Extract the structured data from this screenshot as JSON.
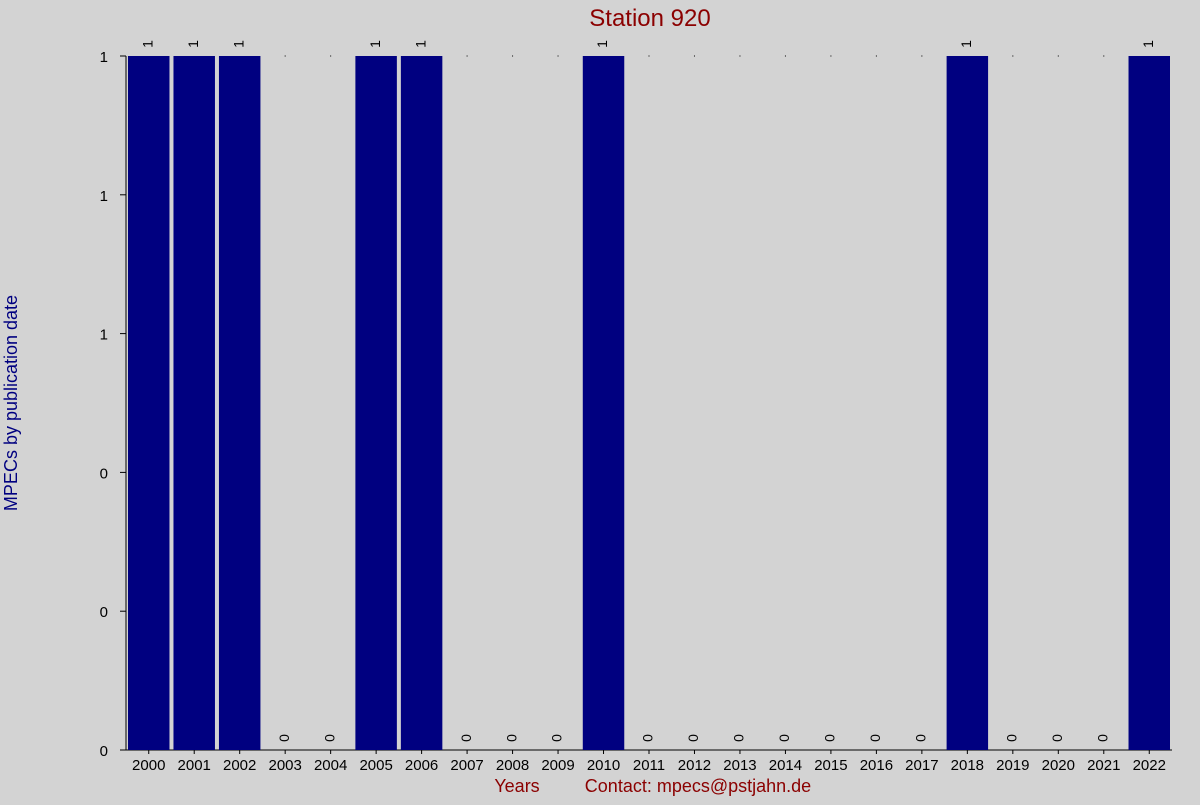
{
  "chart_data": {
    "type": "bar",
    "title": "Station 920",
    "xlabel": "Years",
    "ylabel": "MPECs by publication date",
    "contact": "Contact: mpecs@pstjahn.de",
    "categories": [
      "2000",
      "2001",
      "2002",
      "2003",
      "2004",
      "2005",
      "2006",
      "2007",
      "2008",
      "2009",
      "2010",
      "2011",
      "2012",
      "2013",
      "2014",
      "2015",
      "2016",
      "2017",
      "2018",
      "2019",
      "2020",
      "2021",
      "2022"
    ],
    "values": [
      1,
      1,
      1,
      0,
      0,
      1,
      1,
      0,
      0,
      0,
      1,
      0,
      0,
      0,
      0,
      0,
      0,
      0,
      1,
      0,
      0,
      0,
      1
    ],
    "ylim": [
      0,
      1
    ],
    "y_tick_values": [
      0,
      0.2,
      0.4,
      0.6,
      0.8,
      1
    ],
    "y_tick_labels": [
      "0",
      "0",
      "0",
      "1",
      "1",
      "1"
    ],
    "grid": false,
    "colors": {
      "bar": "#000080",
      "title": "#8b0000",
      "xlabel": "#8b0000",
      "ylabel": "#000080",
      "background": "#d3d3d3"
    }
  }
}
